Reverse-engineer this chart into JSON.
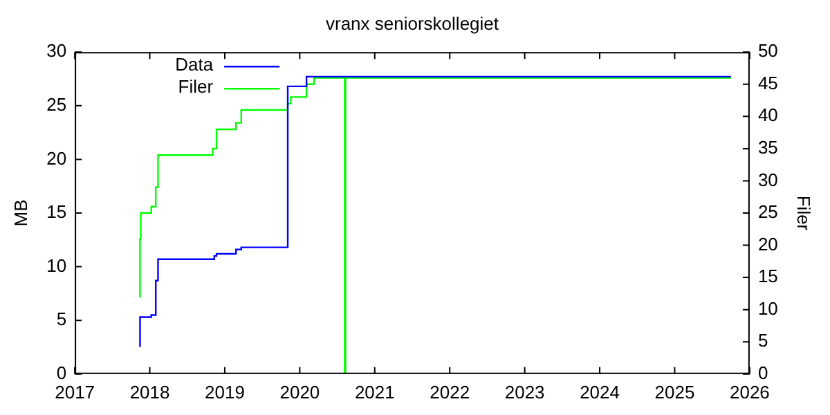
{
  "chart_data": {
    "type": "step",
    "title": "vranx seniorskollegiet",
    "ylabel": "MB",
    "y2label": "Filer",
    "xlim": [
      2017,
      2026
    ],
    "xticks": [
      2017,
      2018,
      2019,
      2020,
      2021,
      2022,
      2023,
      2024,
      2025,
      2026
    ],
    "ylim": [
      0,
      30
    ],
    "yticks": [
      0,
      5,
      10,
      15,
      20,
      25,
      30
    ],
    "y2lim": [
      0,
      50
    ],
    "y2ticks": [
      0,
      5,
      10,
      15,
      20,
      25,
      30,
      35,
      40,
      45,
      50
    ],
    "grid": false,
    "legend": "top left",
    "marker": "none",
    "line_style": "solid",
    "series": [
      {
        "name": "Data",
        "color": "#0000ff",
        "x": [
          2017.86,
          2017.87,
          2018.02,
          2018.08,
          2018.11,
          2018.86,
          2018.89,
          2019.15,
          2019.22,
          2019.84,
          2020.09,
          2025.75
        ],
        "values": [
          2.6,
          5.3,
          5.5,
          8.7,
          10.7,
          11.0,
          11.2,
          11.6,
          11.8,
          26.8,
          27.7,
          27.7
        ]
      },
      {
        "name": "Filer",
        "color": "#00ff00",
        "axis": "y2",
        "x": [
          2017.86,
          2017.87,
          2017.88,
          2018.02,
          2018.08,
          2018.11,
          2018.84,
          2018.89,
          2019.15,
          2019.22,
          2019.84,
          2019.88,
          2020.09,
          2020.19,
          2020.6,
          2020.61,
          2025.75
        ],
        "values": [
          12,
          21,
          25,
          26,
          29,
          34,
          35,
          38,
          39,
          41,
          42,
          43,
          45,
          46,
          0,
          46,
          46
        ]
      }
    ]
  }
}
